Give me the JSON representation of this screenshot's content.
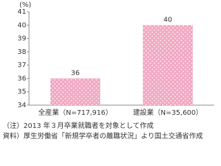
{
  "chart_data": {
    "type": "bar",
    "unit_label": "(%)",
    "categories": [
      "全産業（N=717,916）",
      "建設業（N=35,600）"
    ],
    "values": [
      36,
      40
    ],
    "color": "#f2a8c2",
    "ylim": [
      34,
      41
    ],
    "yticks": [
      34,
      35,
      36,
      37,
      38,
      39,
      40,
      41
    ],
    "grid": false,
    "notes": [
      "（注）2013 年３月卒業就職者を対象として作成",
      "資料）厚生労働省「新規学卒者の離職状況」より国土交通省作成"
    ]
  }
}
